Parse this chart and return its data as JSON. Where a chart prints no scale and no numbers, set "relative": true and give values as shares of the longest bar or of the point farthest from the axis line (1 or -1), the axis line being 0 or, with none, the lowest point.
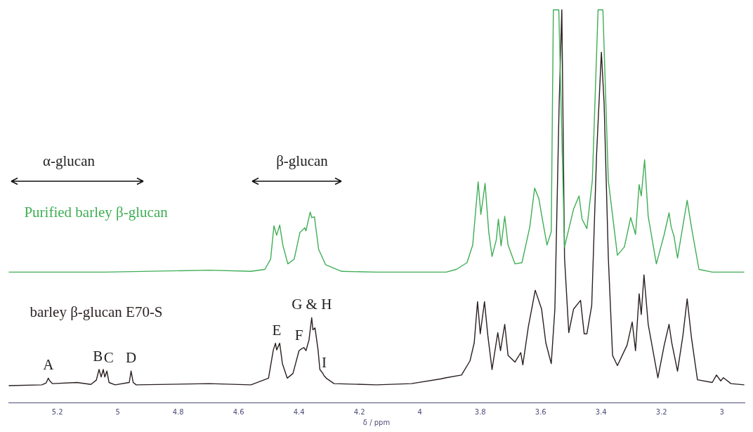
{
  "chart_data": {
    "type": "line",
    "relative": true,
    "xlabel": "δ / ppm",
    "xlim": [
      5.362,
      2.925
    ],
    "xticks": [
      5.2,
      5,
      4.8,
      4.6,
      4.4,
      4.2,
      4,
      3.8,
      3.6,
      3.4,
      3.2,
      3
    ],
    "annotations": [
      "α-glucan",
      "β-glucan",
      {
        "text": "A",
        "x": 5.23,
        "y": 0.062
      },
      {
        "text": "B",
        "x": 5.066,
        "y": 0.084
      },
      {
        "text": "C",
        "x": 5.03,
        "y": 0.08
      },
      {
        "text": "D",
        "x": 4.956,
        "y": 0.08
      },
      {
        "text": "E",
        "x": 4.474,
        "y": 0.151
      },
      {
        "text": "F",
        "x": 4.4,
        "y": 0.137
      },
      {
        "text": "G & H",
        "x": 4.358,
        "y": 0.216
      },
      {
        "text": "I",
        "x": 4.317,
        "y": 0.068
      }
    ],
    "series": [
      {
        "name": "Purified barley β-glucan",
        "color": "#3fae55",
        "x": [
          5.361,
          5.043,
          4.697,
          4.559,
          4.513,
          4.494,
          4.483,
          4.474,
          4.464,
          4.453,
          4.437,
          4.416,
          4.397,
          4.381,
          4.377,
          4.363,
          4.358,
          4.349,
          4.335,
          4.312,
          4.259,
          4.144,
          3.913,
          3.879,
          3.844,
          3.825,
          3.807,
          3.798,
          3.784,
          3.772,
          3.761,
          3.747,
          3.74,
          3.731,
          3.719,
          3.708,
          3.685,
          3.662,
          3.636,
          3.62,
          3.606,
          3.593,
          3.579,
          3.565,
          3.558,
          3.54,
          3.521,
          3.491,
          3.473,
          3.463,
          3.447,
          3.429,
          3.41,
          3.394,
          3.376,
          3.346,
          3.323,
          3.302,
          3.286,
          3.274,
          3.267,
          3.256,
          3.244,
          3.217,
          3.191,
          3.175,
          3.168,
          3.159,
          3.147,
          3.115,
          3.101,
          3.076,
          3.032,
          2.926
        ],
        "values": [
          0.332,
          0.332,
          0.337,
          0.334,
          0.339,
          0.365,
          0.45,
          0.426,
          0.452,
          0.399,
          0.353,
          0.365,
          0.433,
          0.445,
          0.437,
          0.485,
          0.471,
          0.473,
          0.39,
          0.351,
          0.334,
          0.332,
          0.332,
          0.339,
          0.356,
          0.401,
          0.562,
          0.479,
          0.558,
          0.435,
          0.372,
          0.414,
          0.467,
          0.399,
          0.474,
          0.401,
          0.353,
          0.356,
          0.447,
          0.546,
          0.519,
          0.461,
          0.401,
          0.435,
          1,
          1,
          0.396,
          0.493,
          0.526,
          0.467,
          0.443,
          0.565,
          1,
          1,
          0.565,
          0.375,
          0.396,
          0.471,
          0.428,
          0.555,
          0.526,
          0.618,
          0.474,
          0.353,
          0.428,
          0.483,
          0.447,
          0.425,
          0.368,
          0.515,
          0.447,
          0.339,
          0.332,
          0.332
        ]
      },
      {
        "name": "barley β-glucan E70-S",
        "color": "#2a1f1f",
        "x": [
          5.361,
          5.251,
          5.237,
          5.23,
          5.225,
          5.216,
          5.135,
          5.089,
          5.071,
          5.062,
          5.055,
          5.048,
          5.043,
          5.036,
          5.029,
          5.009,
          4.962,
          4.956,
          4.949,
          4.939,
          4.697,
          4.559,
          4.501,
          4.485,
          4.478,
          4.474,
          4.464,
          4.455,
          4.439,
          4.42,
          4.4,
          4.391,
          4.384,
          4.377,
          4.367,
          4.358,
          4.354,
          4.347,
          4.337,
          4.331,
          4.321,
          4.317,
          4.31,
          4.284,
          4.144,
          4.028,
          3.932,
          3.913,
          3.862,
          3.834,
          3.82,
          3.809,
          3.8,
          3.786,
          3.775,
          3.761,
          3.742,
          3.733,
          3.719,
          3.708,
          3.685,
          3.666,
          3.659,
          3.641,
          3.618,
          3.597,
          3.583,
          3.565,
          3.553,
          3.539,
          3.53,
          3.521,
          3.507,
          3.491,
          3.468,
          3.456,
          3.447,
          3.431,
          3.415,
          3.399,
          3.39,
          3.376,
          3.362,
          3.346,
          3.314,
          3.297,
          3.286,
          3.274,
          3.267,
          3.258,
          3.244,
          3.212,
          3.191,
          3.175,
          3.166,
          3.147,
          3.129,
          3.115,
          3.101,
          3.081,
          3.032,
          3.018,
          3.004,
          2.995,
          2.97,
          2.926
        ],
        "values": [
          0.043,
          0.045,
          0.05,
          0.062,
          0.055,
          0.048,
          0.051,
          0.046,
          0.057,
          0.084,
          0.065,
          0.084,
          0.065,
          0.08,
          0.051,
          0.045,
          0.051,
          0.08,
          0.051,
          0.045,
          0.048,
          0.045,
          0.062,
          0.134,
          0.151,
          0.134,
          0.151,
          0.099,
          0.062,
          0.074,
          0.132,
          0.137,
          0.14,
          0.132,
          0.159,
          0.216,
          0.185,
          0.19,
          0.134,
          0.084,
          0.074,
          0.068,
          0.062,
          0.048,
          0.045,
          0.048,
          0.06,
          0.063,
          0.07,
          0.106,
          0.152,
          0.257,
          0.175,
          0.257,
          0.171,
          0.084,
          0.178,
          0.132,
          0.199,
          0.12,
          0.103,
          0.127,
          0.096,
          0.192,
          0.286,
          0.238,
          0.152,
          0.099,
          0.238,
          0.755,
          1,
          0.368,
          0.178,
          0.238,
          0.26,
          0.175,
          0.175,
          0.247,
          0.63,
          0.892,
          0.762,
          0.368,
          0.12,
          0.094,
          0.146,
          0.205,
          0.132,
          0.277,
          0.224,
          0.325,
          0.199,
          0.063,
          0.146,
          0.199,
          0.152,
          0.08,
          0.171,
          0.264,
          0.166,
          0.058,
          0.051,
          0.07,
          0.055,
          0.063,
          0.048,
          0.045
        ]
      }
    ]
  }
}
